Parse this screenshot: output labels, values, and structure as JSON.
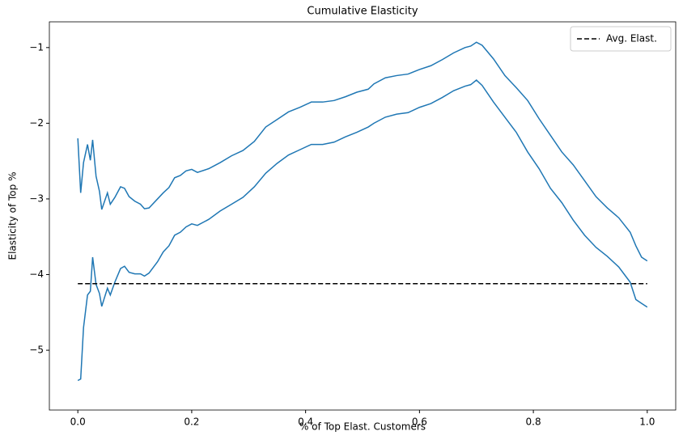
{
  "chart_data": {
    "type": "line",
    "title": "Cumulative Elasticity",
    "xlabel": "% of Top Elast. Customers",
    "ylabel": "Elasticity of Top %",
    "x": [
      0.0,
      0.005,
      0.01,
      0.017,
      0.022,
      0.026,
      0.032,
      0.038,
      0.042,
      0.052,
      0.057,
      0.065,
      0.075,
      0.082,
      0.09,
      0.1,
      0.11,
      0.117,
      0.125,
      0.14,
      0.15,
      0.16,
      0.17,
      0.18,
      0.19,
      0.2,
      0.21,
      0.23,
      0.25,
      0.27,
      0.29,
      0.31,
      0.33,
      0.35,
      0.37,
      0.39,
      0.41,
      0.43,
      0.45,
      0.47,
      0.49,
      0.51,
      0.52,
      0.54,
      0.56,
      0.58,
      0.6,
      0.62,
      0.64,
      0.66,
      0.68,
      0.69,
      0.7,
      0.71,
      0.73,
      0.75,
      0.77,
      0.79,
      0.81,
      0.83,
      0.85,
      0.87,
      0.89,
      0.91,
      0.93,
      0.95,
      0.97,
      0.98,
      0.99,
      1.0
    ],
    "series": [
      {
        "color": "#1f77b4",
        "values": [
          -2.2,
          -2.92,
          -2.52,
          -2.28,
          -2.49,
          -2.22,
          -2.7,
          -2.9,
          -3.14,
          -2.92,
          -3.07,
          -2.98,
          -2.84,
          -2.86,
          -2.97,
          -3.03,
          -3.07,
          -3.13,
          -3.12,
          -3.0,
          -2.92,
          -2.85,
          -2.72,
          -2.69,
          -2.63,
          -2.61,
          -2.65,
          -2.6,
          -2.52,
          -2.43,
          -2.36,
          -2.24,
          -2.05,
          -1.95,
          -1.85,
          -1.79,
          -1.72,
          -1.72,
          -1.7,
          -1.65,
          -1.59,
          -1.55,
          -1.48,
          -1.4,
          -1.37,
          -1.35,
          -1.29,
          -1.24,
          -1.16,
          -1.07,
          -1.0,
          -0.98,
          -0.93,
          -0.97,
          -1.15,
          -1.37,
          -1.53,
          -1.7,
          -1.94,
          -2.16,
          -2.38,
          -2.55,
          -2.76,
          -2.97,
          -3.12,
          -3.25,
          -3.44,
          -3.62,
          -3.77,
          -3.82
        ]
      },
      {
        "color": "#1f77b4",
        "values": [
          -5.4,
          -5.38,
          -4.7,
          -4.27,
          -4.22,
          -3.77,
          -4.13,
          -4.25,
          -4.42,
          -4.18,
          -4.27,
          -4.1,
          -3.92,
          -3.89,
          -3.97,
          -3.99,
          -3.99,
          -4.02,
          -3.98,
          -3.83,
          -3.7,
          -3.62,
          -3.48,
          -3.44,
          -3.37,
          -3.33,
          -3.35,
          -3.27,
          -3.16,
          -3.07,
          -2.98,
          -2.84,
          -2.66,
          -2.53,
          -2.42,
          -2.35,
          -2.28,
          -2.28,
          -2.25,
          -2.18,
          -2.12,
          -2.05,
          -2.0,
          -1.92,
          -1.88,
          -1.86,
          -1.79,
          -1.74,
          -1.66,
          -1.57,
          -1.51,
          -1.49,
          -1.43,
          -1.5,
          -1.72,
          -1.92,
          -2.12,
          -2.38,
          -2.6,
          -2.86,
          -3.05,
          -3.28,
          -3.48,
          -3.64,
          -3.76,
          -3.9,
          -4.1,
          -4.33,
          -4.38,
          -4.43
        ]
      },
      {
        "name": "Avg. Elast.",
        "color": "#000000",
        "dashed": true,
        "x": [
          0,
          1
        ],
        "values": [
          -4.12,
          -4.12
        ]
      }
    ],
    "xlim": [
      -0.05,
      1.05
    ],
    "ylim": [
      -5.79,
      -0.66
    ],
    "xticks": [
      {
        "value": 0,
        "label": "0.0"
      },
      0.2,
      0.4,
      0.6,
      0.8,
      {
        "value": 1,
        "label": "1.0"
      }
    ],
    "yticks": [
      {
        "value": -5,
        "label": "−5"
      },
      {
        "value": -4,
        "label": "−4"
      },
      {
        "value": -3,
        "label": "−3"
      },
      {
        "value": -2,
        "label": "−2"
      },
      {
        "value": -1,
        "label": "−1"
      }
    ],
    "legend": "upper right"
  }
}
